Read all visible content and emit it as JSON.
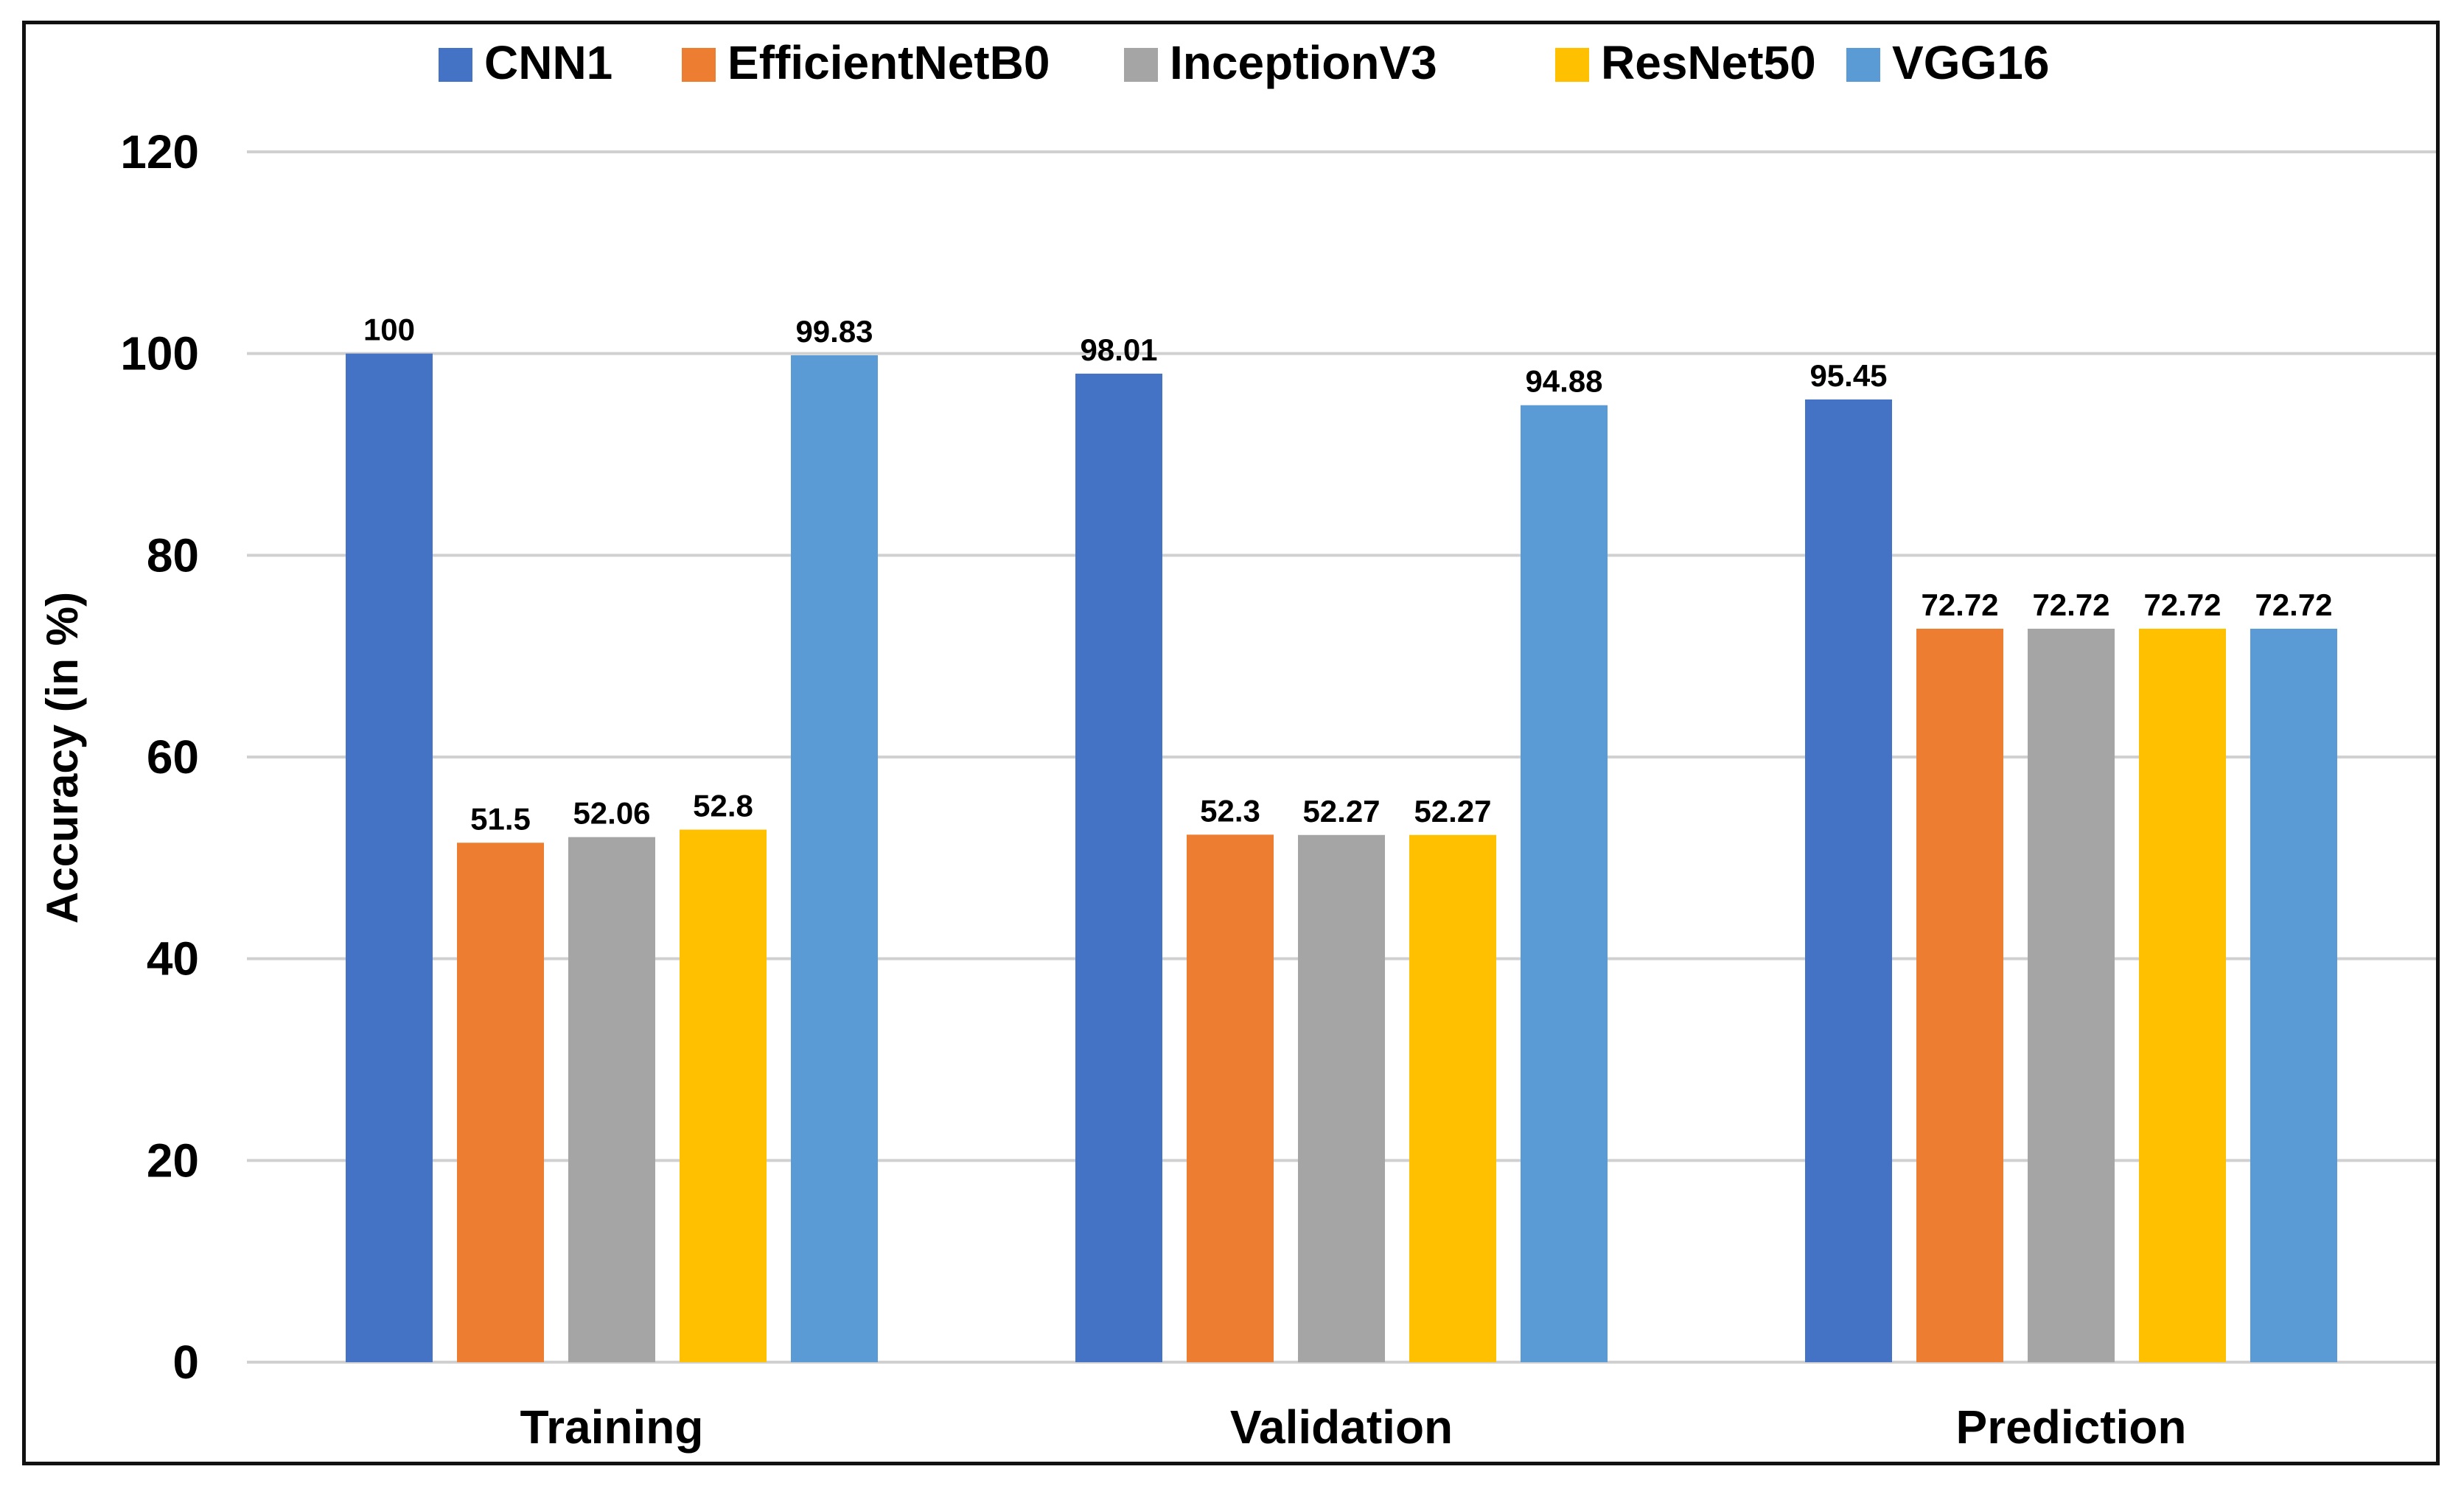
{
  "chart_data": {
    "type": "bar",
    "title": "",
    "xlabel": "",
    "ylabel": "Accuracy (in %)",
    "ylim": [
      0,
      120
    ],
    "yticks": [
      0,
      20,
      40,
      60,
      80,
      100,
      120
    ],
    "grid": true,
    "legend_position": "top",
    "categories": [
      "Training",
      "Validation",
      "Prediction"
    ],
    "series": [
      {
        "name": "CNN1",
        "color": "#4472C4",
        "values": [
          100,
          98.01,
          95.45
        ],
        "labels": [
          "100",
          "98.01",
          "95.45"
        ]
      },
      {
        "name": "EfficientNetB0",
        "color": "#ED7D31",
        "values": [
          51.5,
          52.3,
          72.72
        ],
        "labels": [
          "51.5",
          "52.3",
          "72.72"
        ]
      },
      {
        "name": "InceptionV3",
        "color": "#A5A5A5",
        "values": [
          52.06,
          52.27,
          72.72
        ],
        "labels": [
          "52.06",
          "52.27",
          "72.72"
        ]
      },
      {
        "name": "ResNet50",
        "color": "#FFC000",
        "values": [
          52.8,
          52.27,
          72.72
        ],
        "labels": [
          "52.8",
          "52.27",
          "72.72"
        ]
      },
      {
        "name": "VGG16",
        "color": "#5B9BD5",
        "values": [
          99.83,
          94.88,
          72.72
        ],
        "labels": [
          "99.83",
          "94.88",
          "72.72"
        ]
      }
    ]
  }
}
